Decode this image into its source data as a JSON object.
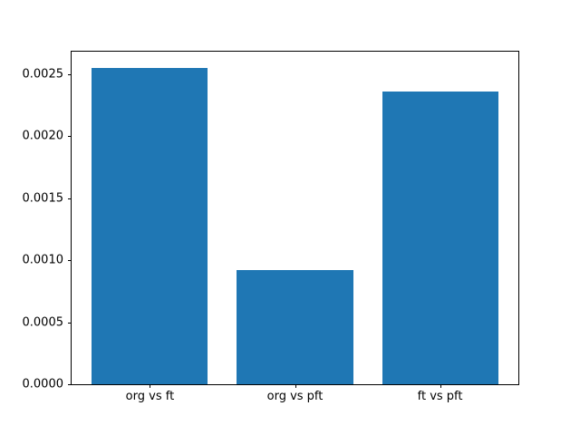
{
  "chart_data": {
    "type": "bar",
    "title": "",
    "xlabel": "",
    "ylabel": "",
    "categories": [
      "org vs ft",
      "org vs pft",
      "ft vs pft"
    ],
    "x_positions": [
      0,
      1,
      2
    ],
    "values": [
      0.00255,
      0.00092,
      0.00236
    ],
    "bar_width": 0.8,
    "bar_color": "#1f77b4",
    "xlim": [
      -0.54,
      2.54
    ],
    "ylim": [
      0,
      0.00268
    ],
    "yticks": [
      0,
      0.0005,
      0.001,
      0.0015,
      0.002,
      0.0025
    ],
    "ytick_labels": [
      "0.0000",
      "0.0005",
      "0.0010",
      "0.0015",
      "0.0020",
      "0.0025"
    ],
    "grid": false,
    "legend": null,
    "background_color": "#ffffff",
    "axes_frame_color": "#000000",
    "tick_label_color": "#000000"
  }
}
